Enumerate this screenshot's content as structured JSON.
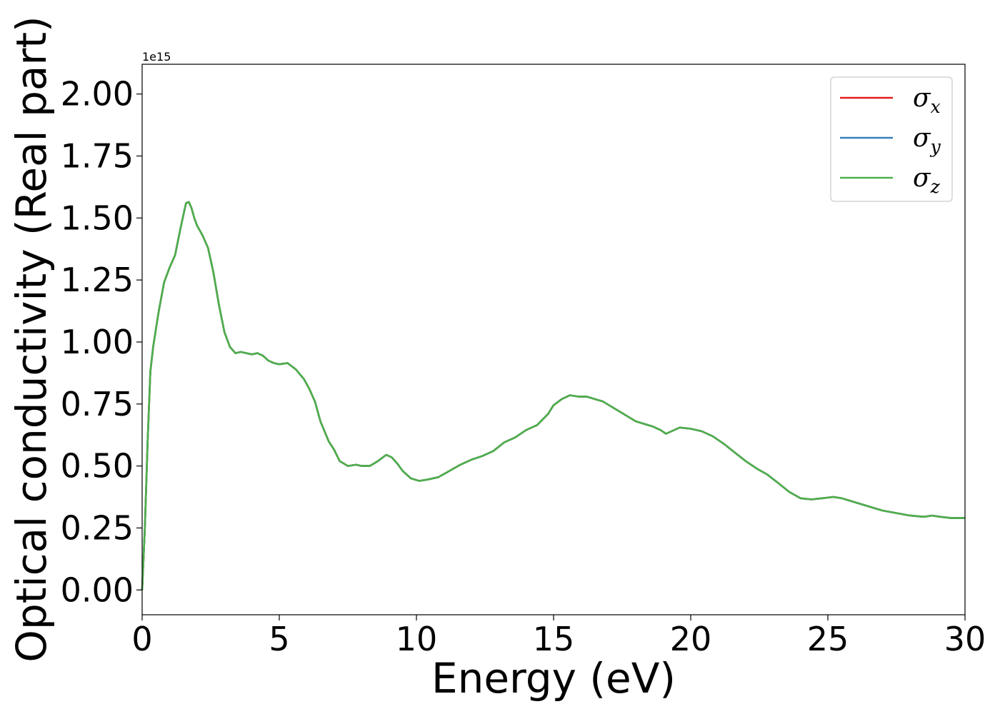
{
  "chart_data": {
    "type": "line",
    "xlabel": "Energy (eV)",
    "ylabel": "Optical conductivity (Real part)",
    "y_offset_label": "1e15",
    "xlim": [
      0,
      30
    ],
    "ylim": [
      -0.1,
      2.12
    ],
    "x_ticks": [
      0,
      5,
      10,
      15,
      20,
      25,
      30
    ],
    "x_tick_labels": [
      "0",
      "5",
      "10",
      "15",
      "20",
      "25",
      "30"
    ],
    "y_ticks": [
      0.0,
      0.25,
      0.5,
      0.75,
      1.0,
      1.25,
      1.5,
      1.75,
      2.0
    ],
    "y_tick_labels": [
      "0.00",
      "0.25",
      "0.50",
      "0.75",
      "1.00",
      "1.25",
      "1.50",
      "1.75",
      "2.00"
    ],
    "grid": false,
    "legend_position": "top-right",
    "x": [
      0,
      0.1,
      0.2,
      0.3,
      0.4,
      0.5,
      0.6,
      0.8,
      1.0,
      1.2,
      1.4,
      1.6,
      1.7,
      1.8,
      1.9,
      2.0,
      2.2,
      2.4,
      2.6,
      2.8,
      3.0,
      3.2,
      3.4,
      3.6,
      3.8,
      4.0,
      4.2,
      4.4,
      4.6,
      4.8,
      5.0,
      5.3,
      5.6,
      5.9,
      6.1,
      6.3,
      6.5,
      6.8,
      7.0,
      7.2,
      7.5,
      7.8,
      8.0,
      8.3,
      8.6,
      8.9,
      9.1,
      9.3,
      9.5,
      9.8,
      10.1,
      10.4,
      10.8,
      11.2,
      11.6,
      12.0,
      12.4,
      12.8,
      13.2,
      13.6,
      14.0,
      14.4,
      14.8,
      15.0,
      15.3,
      15.6,
      15.9,
      16.2,
      16.5,
      16.8,
      17.1,
      17.4,
      17.7,
      18.0,
      18.3,
      18.6,
      18.9,
      19.1,
      19.3,
      19.6,
      20.0,
      20.4,
      20.8,
      21.2,
      21.6,
      22.0,
      22.4,
      22.8,
      23.2,
      23.6,
      24.0,
      24.4,
      24.8,
      25.2,
      25.5,
      25.8,
      26.1,
      26.4,
      26.7,
      27.0,
      27.5,
      28.0,
      28.5,
      28.8,
      29.1,
      29.5,
      30.0
    ],
    "series": [
      {
        "name": "σx",
        "symbol": "σ",
        "sub": "x",
        "color": "#e41a1c",
        "y": [
          0.0,
          0.25,
          0.6,
          0.88,
          0.98,
          1.05,
          1.12,
          1.24,
          1.3,
          1.35,
          1.46,
          1.56,
          1.565,
          1.54,
          1.5,
          1.47,
          1.43,
          1.38,
          1.28,
          1.15,
          1.04,
          0.98,
          0.955,
          0.96,
          0.955,
          0.95,
          0.955,
          0.945,
          0.925,
          0.915,
          0.91,
          0.915,
          0.89,
          0.85,
          0.81,
          0.76,
          0.68,
          0.6,
          0.565,
          0.52,
          0.5,
          0.505,
          0.5,
          0.5,
          0.52,
          0.545,
          0.535,
          0.51,
          0.48,
          0.45,
          0.44,
          0.445,
          0.455,
          0.48,
          0.505,
          0.525,
          0.54,
          0.56,
          0.595,
          0.615,
          0.645,
          0.665,
          0.71,
          0.745,
          0.77,
          0.785,
          0.78,
          0.78,
          0.77,
          0.76,
          0.74,
          0.72,
          0.7,
          0.68,
          0.67,
          0.66,
          0.645,
          0.63,
          0.64,
          0.655,
          0.65,
          0.64,
          0.62,
          0.59,
          0.555,
          0.52,
          0.49,
          0.465,
          0.43,
          0.395,
          0.37,
          0.365,
          0.37,
          0.375,
          0.37,
          0.36,
          0.35,
          0.34,
          0.33,
          0.32,
          0.31,
          0.3,
          0.295,
          0.3,
          0.295,
          0.29,
          0.29
        ]
      },
      {
        "name": "σy",
        "symbol": "σ",
        "sub": "y",
        "color": "#377eb8",
        "y": [
          0.0,
          0.25,
          0.6,
          0.88,
          0.98,
          1.05,
          1.12,
          1.24,
          1.3,
          1.35,
          1.46,
          1.56,
          1.565,
          1.54,
          1.5,
          1.47,
          1.43,
          1.38,
          1.28,
          1.15,
          1.04,
          0.98,
          0.955,
          0.96,
          0.955,
          0.95,
          0.955,
          0.945,
          0.925,
          0.915,
          0.91,
          0.915,
          0.89,
          0.85,
          0.81,
          0.76,
          0.68,
          0.6,
          0.565,
          0.52,
          0.5,
          0.505,
          0.5,
          0.5,
          0.52,
          0.545,
          0.535,
          0.51,
          0.48,
          0.45,
          0.44,
          0.445,
          0.455,
          0.48,
          0.505,
          0.525,
          0.54,
          0.56,
          0.595,
          0.615,
          0.645,
          0.665,
          0.71,
          0.745,
          0.77,
          0.785,
          0.78,
          0.78,
          0.77,
          0.76,
          0.74,
          0.72,
          0.7,
          0.68,
          0.67,
          0.66,
          0.645,
          0.63,
          0.64,
          0.655,
          0.65,
          0.64,
          0.62,
          0.59,
          0.555,
          0.52,
          0.49,
          0.465,
          0.43,
          0.395,
          0.37,
          0.365,
          0.37,
          0.375,
          0.37,
          0.36,
          0.35,
          0.34,
          0.33,
          0.32,
          0.31,
          0.3,
          0.295,
          0.3,
          0.295,
          0.29,
          0.29
        ]
      },
      {
        "name": "σz",
        "symbol": "σ",
        "sub": "z",
        "color": "#4daf4a",
        "y": [
          0.0,
          0.25,
          0.6,
          0.88,
          0.98,
          1.05,
          1.12,
          1.24,
          1.3,
          1.35,
          1.46,
          1.56,
          1.565,
          1.54,
          1.5,
          1.47,
          1.43,
          1.38,
          1.28,
          1.15,
          1.04,
          0.98,
          0.955,
          0.96,
          0.955,
          0.95,
          0.955,
          0.945,
          0.925,
          0.915,
          0.91,
          0.915,
          0.89,
          0.85,
          0.81,
          0.76,
          0.68,
          0.6,
          0.565,
          0.52,
          0.5,
          0.505,
          0.5,
          0.5,
          0.52,
          0.545,
          0.535,
          0.51,
          0.48,
          0.45,
          0.44,
          0.445,
          0.455,
          0.48,
          0.505,
          0.525,
          0.54,
          0.56,
          0.595,
          0.615,
          0.645,
          0.665,
          0.71,
          0.745,
          0.77,
          0.785,
          0.78,
          0.78,
          0.77,
          0.76,
          0.74,
          0.72,
          0.7,
          0.68,
          0.67,
          0.66,
          0.645,
          0.63,
          0.64,
          0.655,
          0.65,
          0.64,
          0.62,
          0.59,
          0.555,
          0.52,
          0.49,
          0.465,
          0.43,
          0.395,
          0.37,
          0.365,
          0.37,
          0.375,
          0.37,
          0.36,
          0.35,
          0.34,
          0.33,
          0.32,
          0.31,
          0.3,
          0.295,
          0.3,
          0.295,
          0.29,
          0.29
        ]
      }
    ]
  }
}
